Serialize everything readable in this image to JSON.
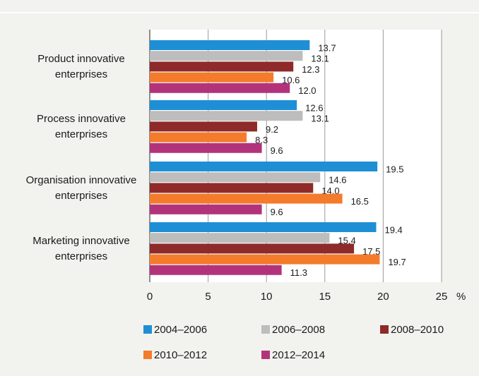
{
  "chart_data": {
    "type": "hbar",
    "categories": [
      "Product innovative enterprises",
      "Process innovative enterprises",
      "Organisation innovative enterprises",
      "Marketing innovative enterprises"
    ],
    "series": [
      {
        "name": "2004–2006",
        "color": "#1e8fd5",
        "values": [
          13.7,
          12.6,
          19.5,
          19.4
        ],
        "value_labels": [
          "13.7",
          "12.6",
          "19.5",
          "19.4"
        ]
      },
      {
        "name": "2006–2008",
        "color": "#bdbdbd",
        "values": [
          13.1,
          13.1,
          14.6,
          15.4
        ],
        "value_labels": [
          "13.1",
          "13.1",
          "14.6",
          "15.4"
        ]
      },
      {
        "name": "2008–2010",
        "color": "#8f2a2a",
        "values": [
          12.3,
          9.2,
          14.0,
          17.5
        ],
        "value_labels": [
          "12.3",
          "9.2",
          "14.0",
          "17.5"
        ]
      },
      {
        "name": "2010–2012",
        "color": "#f47b2b",
        "values": [
          10.6,
          8.3,
          16.5,
          19.7
        ],
        "value_labels": [
          "10.6",
          "8.3",
          "16.5",
          "19.7"
        ]
      },
      {
        "name": "2012–2014",
        "color": "#b3337b",
        "values": [
          12.0,
          9.6,
          9.6,
          11.3
        ],
        "value_labels": [
          "12.0",
          "9.6",
          "9.6",
          "11.3"
        ]
      }
    ],
    "xlim": [
      0,
      25
    ],
    "xticks": [
      0,
      5,
      10,
      15,
      20,
      25
    ],
    "x_unit": "%",
    "grid": true
  }
}
